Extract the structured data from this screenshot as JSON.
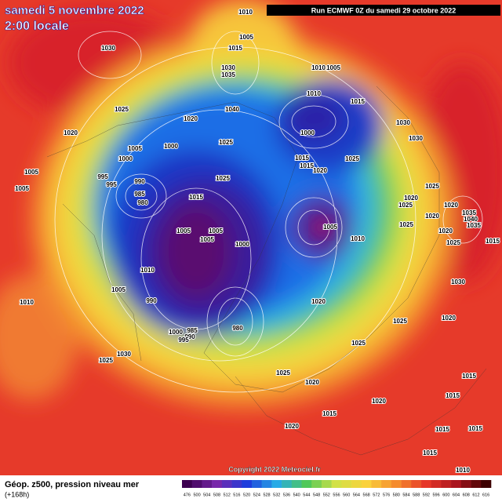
{
  "header": {
    "title_line1": "samedi 5 novembre 2022",
    "title_line2": "2:00 locale",
    "run": "Run ECMWF 0Z du samedi 29 octobre 2022"
  },
  "map": {
    "pressure_labels": [
      "1010",
      "1005",
      "1015",
      "1030",
      "1030",
      "1035",
      "1010",
      "1005",
      "1010",
      "1015",
      "1025",
      "1040",
      "1020",
      "1030",
      "1000",
      "1030",
      "1020",
      "1005",
      "1000",
      "1025",
      "1000",
      "1015",
      "1015",
      "1020",
      "1025",
      "1005",
      "995",
      "995",
      "990",
      "985",
      "980",
      "1025",
      "1005",
      "1015",
      "1025",
      "1020",
      "1025",
      "1020",
      "1035",
      "1040",
      "1035",
      "1005",
      "1005",
      "1005",
      "1000",
      "1005",
      "1010",
      "1025",
      "1020",
      "1020",
      "1015",
      "1025",
      "1010",
      "1005",
      "1030",
      "1010",
      "990",
      "1020",
      "985",
      "990",
      "1000",
      "995",
      "980",
      "1025",
      "1020",
      "1025",
      "1030",
      "1025",
      "1025",
      "1020",
      "1015",
      "1015",
      "1020",
      "1015",
      "1020",
      "1015",
      "1015",
      "1015",
      "1010"
    ],
    "copyright": "Copyright 2022 Meteociel.fr"
  },
  "footer": {
    "legend_title": "Géop. z500, pression niveau mer",
    "legend_subtitle": "(+168h)",
    "colorbar_labels": [
      "476",
      "500",
      "504",
      "508",
      "512",
      "516",
      "520",
      "524",
      "528",
      "532",
      "536",
      "540",
      "544",
      "548",
      "552",
      "556",
      "560",
      "564",
      "568",
      "572",
      "576",
      "580",
      "584",
      "588",
      "592",
      "596",
      "600",
      "604",
      "608",
      "612",
      "616"
    ]
  }
}
